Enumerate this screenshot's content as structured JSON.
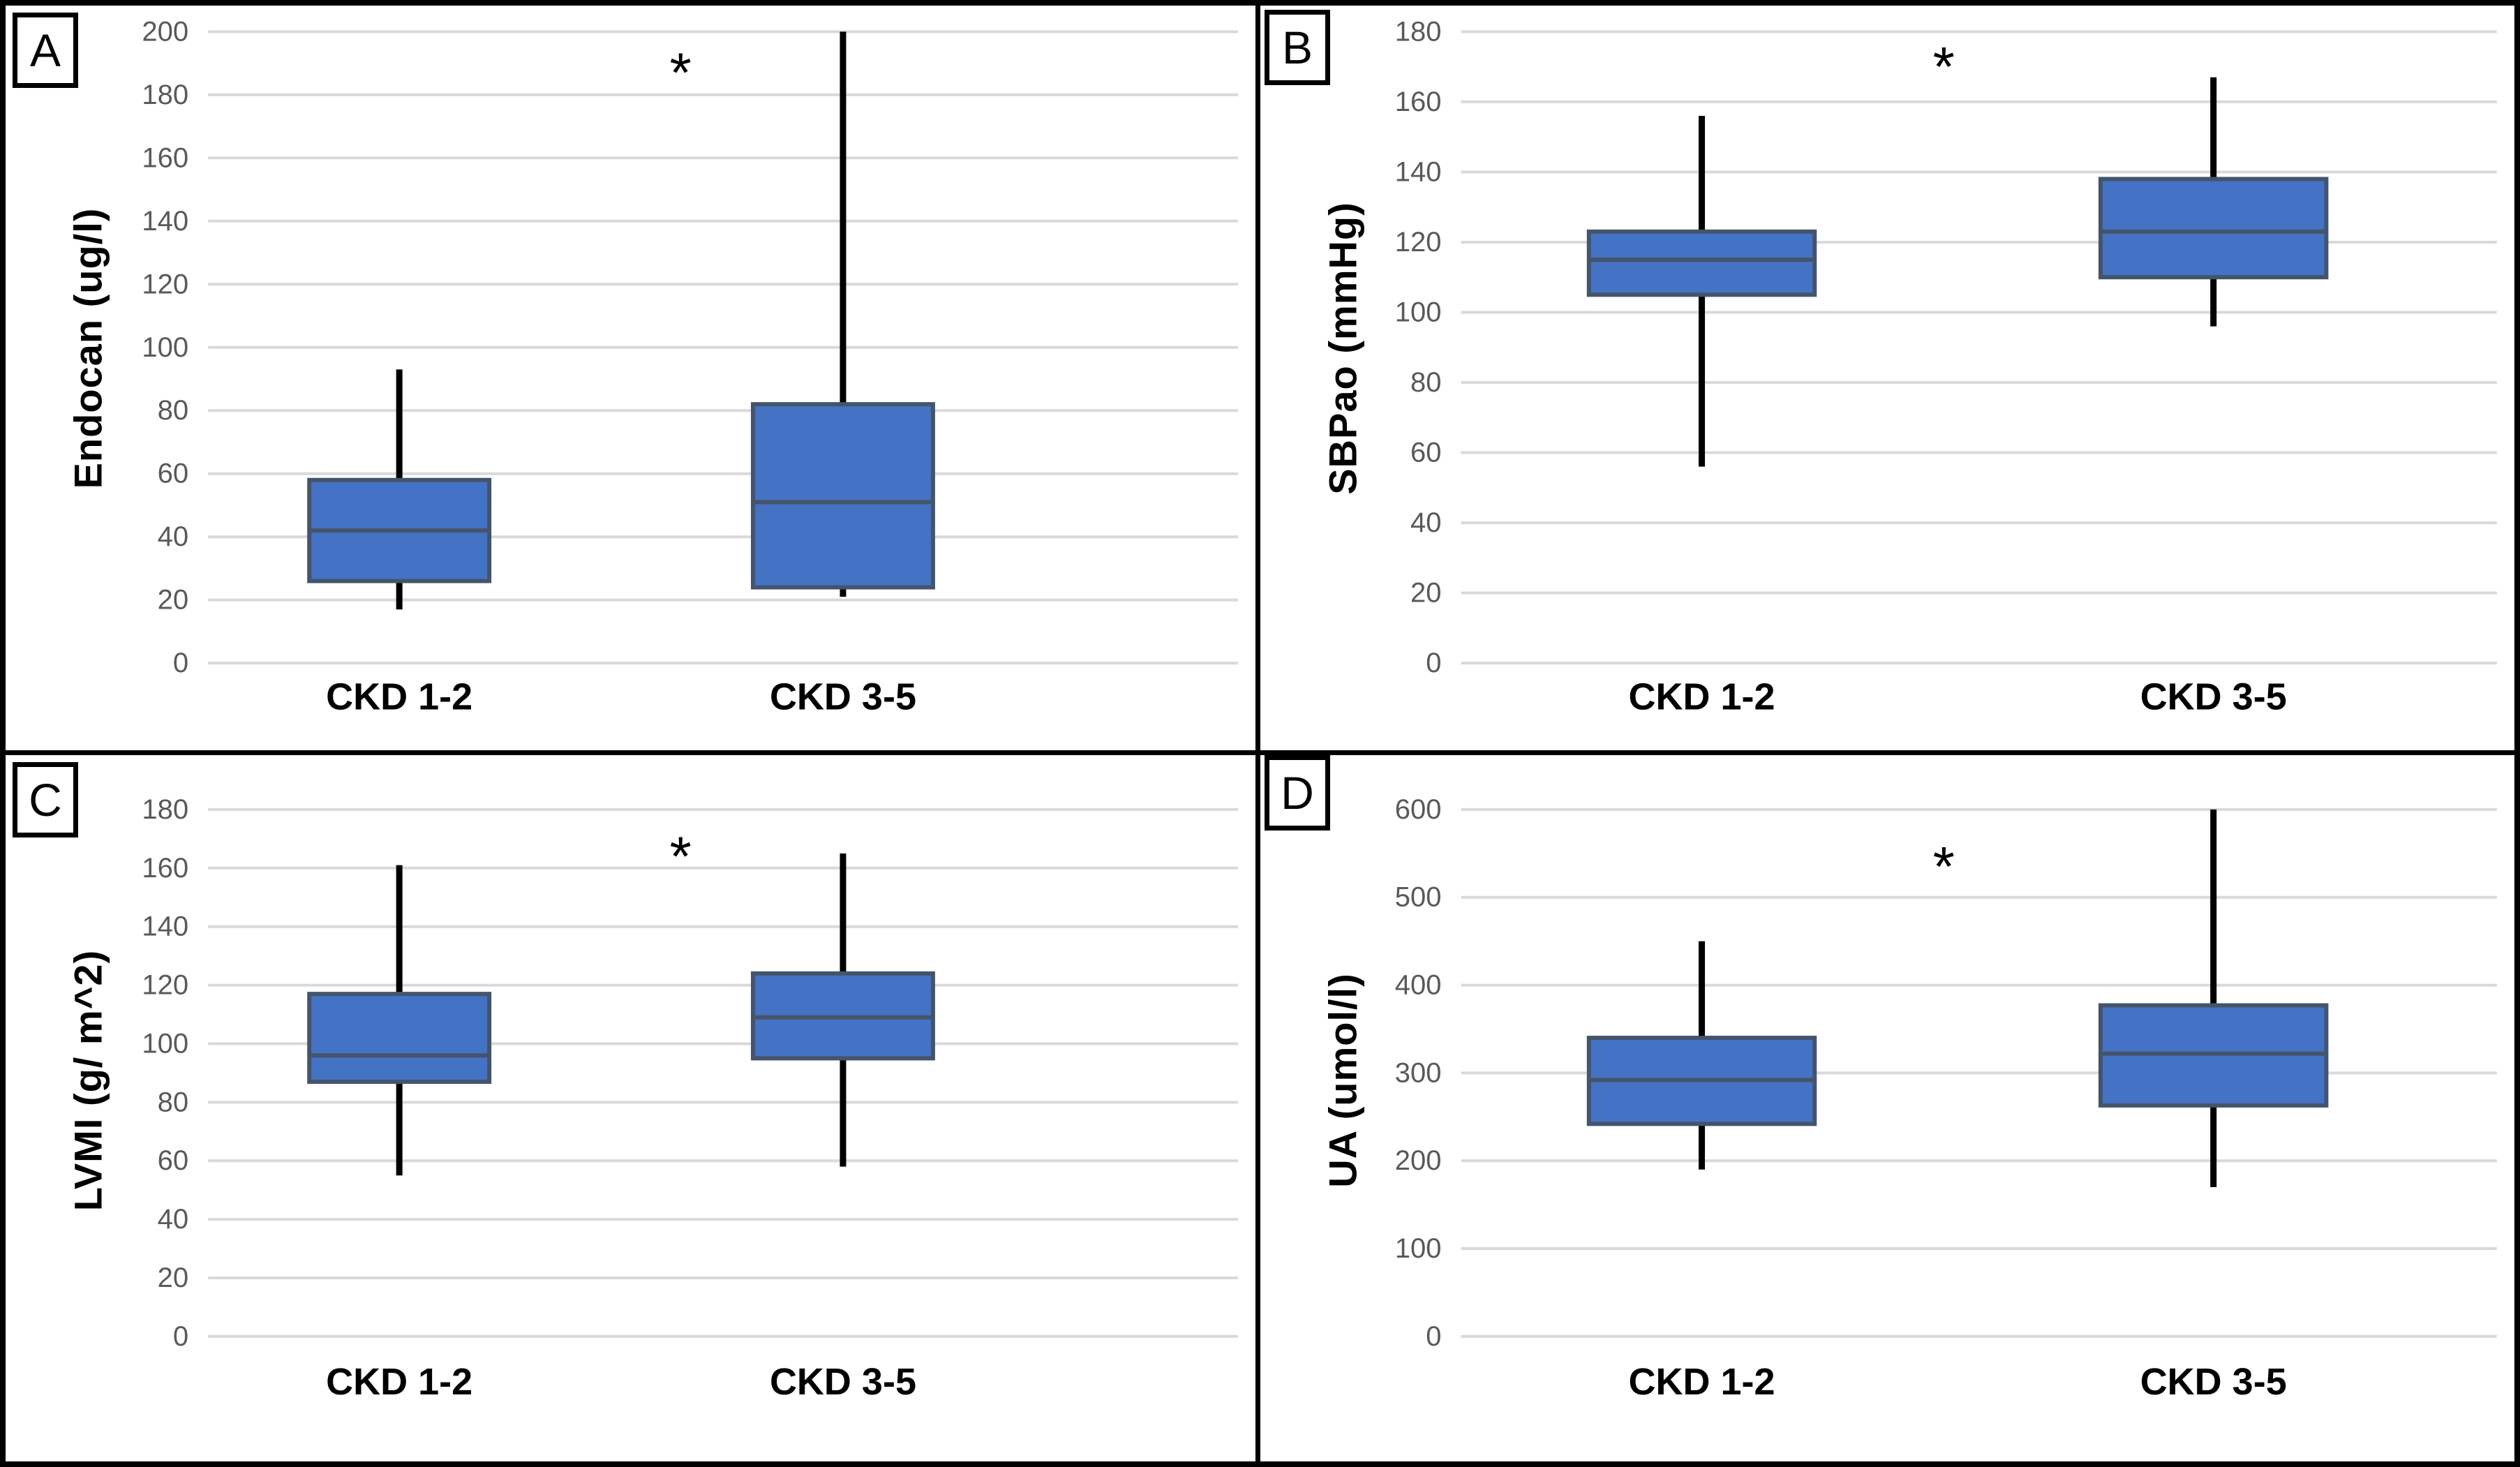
{
  "colors": {
    "box_fill": "#4472C4",
    "box_border": "#44546A",
    "median_line": "#44546A",
    "whisker": "#000000",
    "gridline": "#D9D9D9",
    "tick_label": "#595959",
    "text": "#000000",
    "panel_border": "#000000"
  },
  "chart_data": [
    {
      "type": "box",
      "panel": "A",
      "ylabel": "Endocan (ug/l)",
      "ymin": 0,
      "ymax": 200,
      "ystep": 20,
      "grid": true,
      "categories": [
        "CKD 1-2",
        "CKD 3-5"
      ],
      "significance_marker": "*",
      "significance_y": 187,
      "series": [
        {
          "category": "CKD 1-2",
          "whisker_low": 17,
          "q1": 26,
          "median": 42,
          "q3": 58,
          "whisker_high": 93
        },
        {
          "category": "CKD 3-5",
          "whisker_low": 21,
          "q1": 24,
          "median": 51,
          "q3": 82,
          "whisker_high": 200
        }
      ]
    },
    {
      "type": "box",
      "panel": "B",
      "ylabel": "SBPao (mmHg)",
      "ymin": 0,
      "ymax": 180,
      "ystep": 20,
      "grid": true,
      "categories": [
        "CKD 1-2",
        "CKD 3-5"
      ],
      "significance_marker": "*",
      "significance_y": 170,
      "series": [
        {
          "category": "CKD 1-2",
          "whisker_low": 56,
          "q1": 105,
          "median": 115,
          "q3": 123,
          "whisker_high": 156
        },
        {
          "category": "CKD 3-5",
          "whisker_low": 96,
          "q1": 110,
          "median": 123,
          "q3": 138,
          "whisker_high": 167
        }
      ]
    },
    {
      "type": "box",
      "panel": "C",
      "ylabel": "LVMI (g/ m^2)",
      "ymin": 0,
      "ymax": 180,
      "ystep": 20,
      "grid": true,
      "categories": [
        "CKD 1-2",
        "CKD 3-5"
      ],
      "significance_marker": "*",
      "significance_y": 164,
      "series": [
        {
          "category": "CKD 1-2",
          "whisker_low": 55,
          "q1": 87,
          "median": 96,
          "q3": 117,
          "whisker_high": 161
        },
        {
          "category": "CKD 3-5",
          "whisker_low": 58,
          "q1": 95,
          "median": 109,
          "q3": 124,
          "whisker_high": 165
        }
      ]
    },
    {
      "type": "box",
      "panel": "D",
      "ylabel": "UA (umol/l)",
      "ymin": 0,
      "ymax": 600,
      "ystep": 100,
      "grid": true,
      "categories": [
        "CKD 1-2",
        "CKD 3-5"
      ],
      "significance_marker": "*",
      "significance_y": 535,
      "series": [
        {
          "category": "CKD 1-2",
          "whisker_low": 190,
          "q1": 242,
          "median": 292,
          "q3": 340,
          "whisker_high": 450
        },
        {
          "category": "CKD 3-5",
          "whisker_low": 170,
          "q1": 263,
          "median": 322,
          "q3": 377,
          "whisker_high": 600
        }
      ]
    }
  ]
}
